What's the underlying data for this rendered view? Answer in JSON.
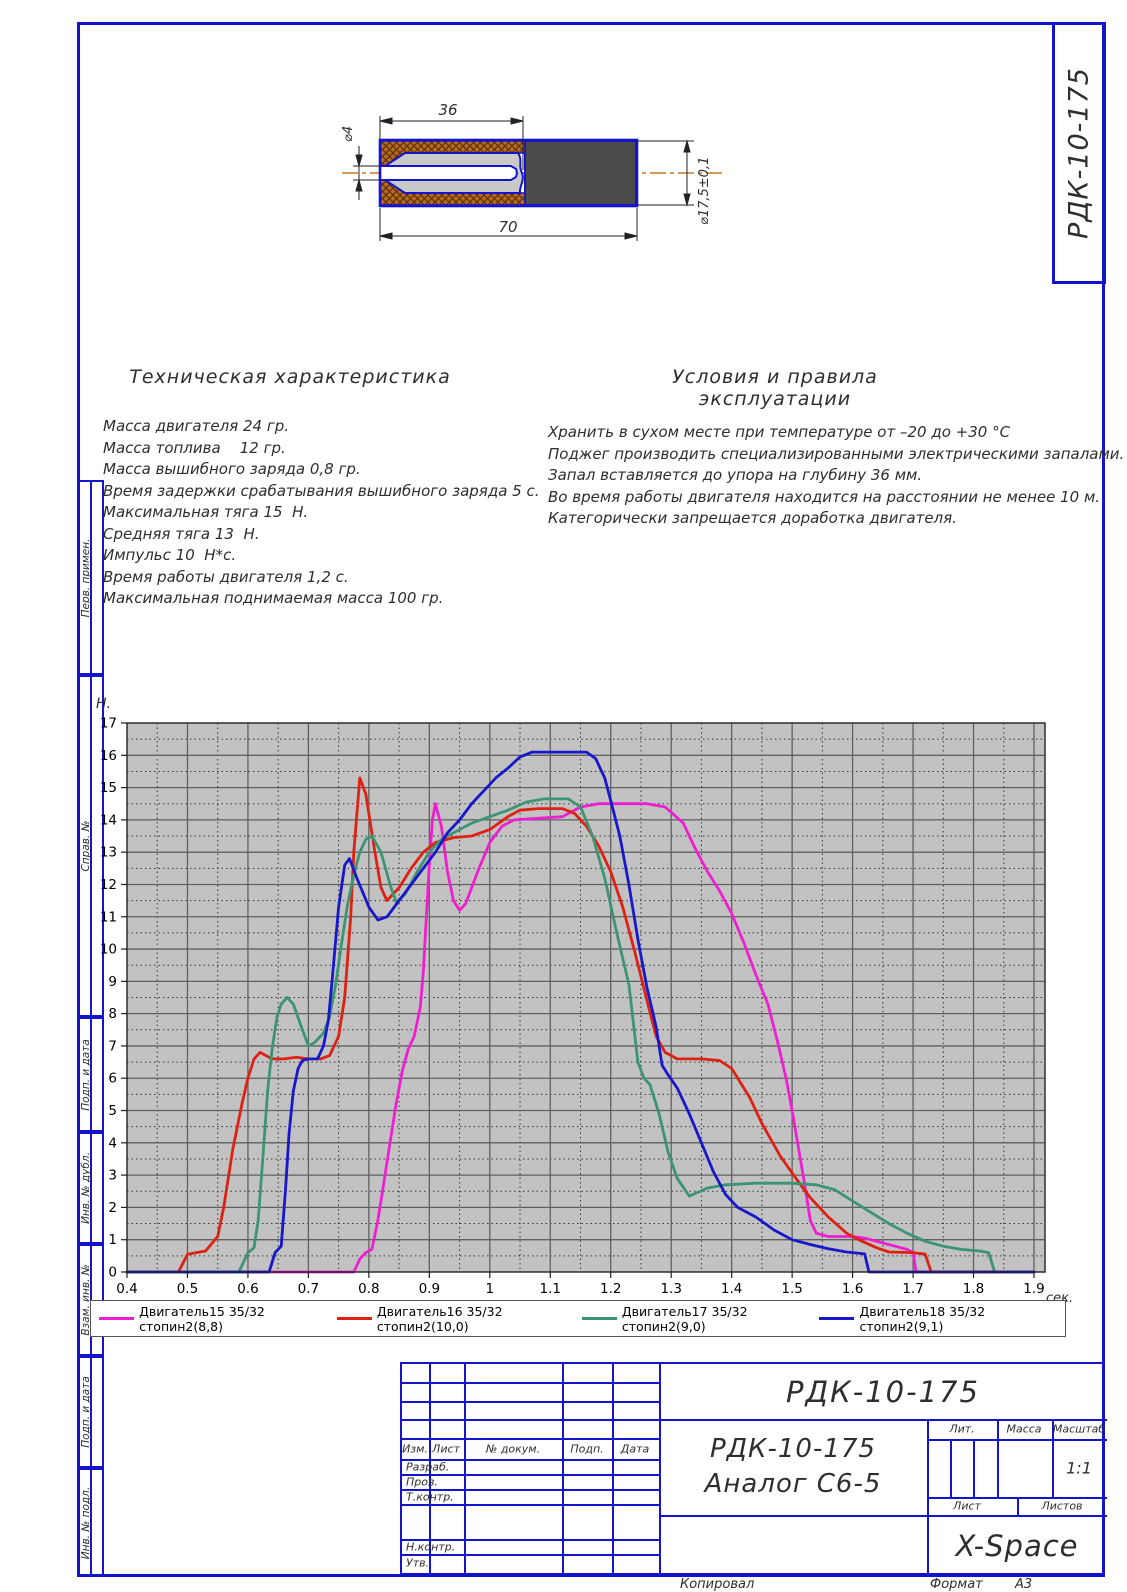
{
  "sheet": {
    "stamp_vertical": "РДК-10-175",
    "copied_label": "Копировал",
    "format_label": "Формат",
    "format_value": "А3"
  },
  "margin_labels": [
    "Перв. примен.",
    "Справ. №",
    "Подп. и дата",
    "Инв. № дубл.",
    "Взам. инв. №",
    "Подп. и дата",
    "Инв. № подл."
  ],
  "drawing": {
    "dim_channel_depth": "36",
    "dim_total_length": "70",
    "dim_channel_dia": "⌀4",
    "dim_body_dia": "⌀17,5±0,1",
    "colors": {
      "outline": "#1414cc",
      "hatch": "#b86a1e",
      "propellant": "#c9c9c9",
      "charge": "#4b4b4b",
      "centerline": "#c87820"
    }
  },
  "tech_specs": {
    "title": "Техническая характеристика",
    "lines": [
      "Масса двигателя 24 гр.",
      "Масса топлива    12 гр.",
      "Масса вышибного заряда 0,8 гр.",
      "Время задержки срабатывания вышибного заряда 5 с.",
      "Максимальная тяга 15  Н.",
      "Средняя тяга 13  Н.",
      "Импульс 10  Н*с.",
      "Время работы двигателя 1,2 с.",
      "Максимальная поднимаемая масса 100 гр."
    ]
  },
  "usage_rules": {
    "title": "Условия и правила эксплуатации",
    "lines": [
      "Хранить в сухом месте при температуре от –20 до +30 °С",
      "Поджег производить специализированными электрическими запалами.",
      "Запал вставляется до упора на глубину 36 мм.",
      "Во время работы двигателя находится на расстоянии не менее 10 м.",
      "Категорически запрещается доработка двигателя."
    ]
  },
  "chart_data": {
    "type": "line",
    "title": "",
    "xlabel": "сек.",
    "ylabel": "Н.",
    "xlim": [
      0.4,
      1.9
    ],
    "ylim": [
      0,
      17
    ],
    "x_major_step": 0.1,
    "x_minor_step": 0.05,
    "y_major_step": 1,
    "y_minor_step": 0.5,
    "grid": "major solid gray, minor dashed black, gray plot background",
    "plot_bg": "#c2c2c2",
    "major_grid_color": "#606060",
    "minor_grid_color": "#383838",
    "legend_position": "bottom",
    "series": [
      {
        "name": "Двигатель15 35/32 стопин2(8,8)",
        "color": "#ee1fd0",
        "points": [
          [
            0.4,
            0
          ],
          [
            0.775,
            0
          ],
          [
            0.785,
            0.4
          ],
          [
            0.795,
            0.6
          ],
          [
            0.805,
            0.7
          ],
          [
            0.815,
            1.6
          ],
          [
            0.825,
            2.8
          ],
          [
            0.835,
            4.0
          ],
          [
            0.845,
            5.2
          ],
          [
            0.855,
            6.2
          ],
          [
            0.865,
            6.9
          ],
          [
            0.875,
            7.3
          ],
          [
            0.885,
            8.2
          ],
          [
            0.89,
            9.3
          ],
          [
            0.9,
            12.6
          ],
          [
            0.905,
            14.0
          ],
          [
            0.91,
            14.5
          ],
          [
            0.92,
            13.8
          ],
          [
            0.93,
            12.4
          ],
          [
            0.94,
            11.5
          ],
          [
            0.95,
            11.2
          ],
          [
            0.96,
            11.4
          ],
          [
            0.98,
            12.4
          ],
          [
            1.0,
            13.3
          ],
          [
            1.02,
            13.8
          ],
          [
            1.04,
            14.0
          ],
          [
            1.08,
            14.05
          ],
          [
            1.12,
            14.1
          ],
          [
            1.15,
            14.4
          ],
          [
            1.18,
            14.5
          ],
          [
            1.22,
            14.5
          ],
          [
            1.26,
            14.5
          ],
          [
            1.29,
            14.4
          ],
          [
            1.32,
            13.9
          ],
          [
            1.34,
            13.1
          ],
          [
            1.36,
            12.4
          ],
          [
            1.38,
            11.8
          ],
          [
            1.4,
            11.1
          ],
          [
            1.42,
            10.2
          ],
          [
            1.44,
            9.2
          ],
          [
            1.46,
            8.3
          ],
          [
            1.475,
            7.2
          ],
          [
            1.49,
            6.0
          ],
          [
            1.5,
            5.0
          ],
          [
            1.51,
            3.9
          ],
          [
            1.52,
            2.8
          ],
          [
            1.53,
            1.6
          ],
          [
            1.54,
            1.2
          ],
          [
            1.56,
            1.1
          ],
          [
            1.6,
            1.1
          ],
          [
            1.62,
            1.05
          ],
          [
            1.64,
            0.95
          ],
          [
            1.67,
            0.8
          ],
          [
            1.69,
            0.7
          ],
          [
            1.7,
            0.6
          ],
          [
            1.705,
            0
          ],
          [
            1.9,
            0
          ]
        ]
      },
      {
        "name": "Двигатель16 35/32 стопин2(10,0)",
        "color": "#dd2112",
        "points": [
          [
            0.4,
            0
          ],
          [
            0.485,
            0
          ],
          [
            0.5,
            0.55
          ],
          [
            0.53,
            0.65
          ],
          [
            0.55,
            1.1
          ],
          [
            0.56,
            2.0
          ],
          [
            0.575,
            3.8
          ],
          [
            0.59,
            5.2
          ],
          [
            0.6,
            6.0
          ],
          [
            0.61,
            6.6
          ],
          [
            0.62,
            6.8
          ],
          [
            0.64,
            6.6
          ],
          [
            0.66,
            6.6
          ],
          [
            0.68,
            6.65
          ],
          [
            0.7,
            6.6
          ],
          [
            0.72,
            6.6
          ],
          [
            0.735,
            6.7
          ],
          [
            0.75,
            7.3
          ],
          [
            0.76,
            8.5
          ],
          [
            0.77,
            11.0
          ],
          [
            0.775,
            13.0
          ],
          [
            0.785,
            15.3
          ],
          [
            0.795,
            14.8
          ],
          [
            0.81,
            13.0
          ],
          [
            0.82,
            11.9
          ],
          [
            0.83,
            11.5
          ],
          [
            0.85,
            11.9
          ],
          [
            0.87,
            12.5
          ],
          [
            0.89,
            13.0
          ],
          [
            0.91,
            13.3
          ],
          [
            0.94,
            13.45
          ],
          [
            0.97,
            13.5
          ],
          [
            1.0,
            13.7
          ],
          [
            1.03,
            14.1
          ],
          [
            1.05,
            14.3
          ],
          [
            1.08,
            14.35
          ],
          [
            1.12,
            14.35
          ],
          [
            1.14,
            14.2
          ],
          [
            1.16,
            13.8
          ],
          [
            1.18,
            13.2
          ],
          [
            1.2,
            12.4
          ],
          [
            1.22,
            11.3
          ],
          [
            1.24,
            9.9
          ],
          [
            1.26,
            8.4
          ],
          [
            1.275,
            7.3
          ],
          [
            1.29,
            6.8
          ],
          [
            1.31,
            6.6
          ],
          [
            1.35,
            6.6
          ],
          [
            1.38,
            6.55
          ],
          [
            1.4,
            6.3
          ],
          [
            1.43,
            5.4
          ],
          [
            1.45,
            4.6
          ],
          [
            1.48,
            3.6
          ],
          [
            1.51,
            2.8
          ],
          [
            1.53,
            2.3
          ],
          [
            1.56,
            1.7
          ],
          [
            1.59,
            1.2
          ],
          [
            1.61,
            1.0
          ],
          [
            1.64,
            0.75
          ],
          [
            1.66,
            0.62
          ],
          [
            1.7,
            0.6
          ],
          [
            1.72,
            0.55
          ],
          [
            1.73,
            0
          ],
          [
            1.9,
            0
          ]
        ]
      },
      {
        "name": "Двигатель17 35/32 стопин2(9,0)",
        "color": "#3c9472",
        "points": [
          [
            0.4,
            0
          ],
          [
            0.585,
            0
          ],
          [
            0.6,
            0.6
          ],
          [
            0.61,
            0.75
          ],
          [
            0.617,
            1.6
          ],
          [
            0.625,
            3.6
          ],
          [
            0.633,
            5.7
          ],
          [
            0.64,
            6.9
          ],
          [
            0.648,
            7.9
          ],
          [
            0.655,
            8.3
          ],
          [
            0.665,
            8.5
          ],
          [
            0.675,
            8.3
          ],
          [
            0.69,
            7.5
          ],
          [
            0.7,
            7.0
          ],
          [
            0.71,
            7.1
          ],
          [
            0.725,
            7.4
          ],
          [
            0.735,
            7.9
          ],
          [
            0.745,
            8.9
          ],
          [
            0.755,
            10.2
          ],
          [
            0.765,
            11.4
          ],
          [
            0.775,
            12.3
          ],
          [
            0.785,
            13.0
          ],
          [
            0.795,
            13.4
          ],
          [
            0.805,
            13.5
          ],
          [
            0.82,
            13.0
          ],
          [
            0.835,
            12.0
          ],
          [
            0.845,
            11.45
          ],
          [
            0.86,
            11.7
          ],
          [
            0.88,
            12.4
          ],
          [
            0.9,
            13.0
          ],
          [
            0.92,
            13.4
          ],
          [
            0.94,
            13.6
          ],
          [
            0.97,
            13.9
          ],
          [
            1.0,
            14.1
          ],
          [
            1.03,
            14.3
          ],
          [
            1.06,
            14.55
          ],
          [
            1.09,
            14.65
          ],
          [
            1.13,
            14.65
          ],
          [
            1.15,
            14.4
          ],
          [
            1.17,
            13.5
          ],
          [
            1.19,
            12.2
          ],
          [
            1.21,
            10.5
          ],
          [
            1.23,
            8.9
          ],
          [
            1.245,
            6.5
          ],
          [
            1.255,
            6.0
          ],
          [
            1.265,
            5.8
          ],
          [
            1.28,
            4.9
          ],
          [
            1.295,
            3.7
          ],
          [
            1.31,
            2.9
          ],
          [
            1.33,
            2.35
          ],
          [
            1.36,
            2.6
          ],
          [
            1.39,
            2.7
          ],
          [
            1.44,
            2.75
          ],
          [
            1.5,
            2.75
          ],
          [
            1.54,
            2.7
          ],
          [
            1.57,
            2.55
          ],
          [
            1.6,
            2.2
          ],
          [
            1.63,
            1.85
          ],
          [
            1.66,
            1.5
          ],
          [
            1.69,
            1.2
          ],
          [
            1.72,
            0.95
          ],
          [
            1.75,
            0.8
          ],
          [
            1.78,
            0.7
          ],
          [
            1.81,
            0.65
          ],
          [
            1.825,
            0.6
          ],
          [
            1.835,
            0
          ],
          [
            1.9,
            0
          ]
        ]
      },
      {
        "name": "Двигатель18 35/32 стопин2(9,1)",
        "color": "#1717cc",
        "points": [
          [
            0.4,
            0
          ],
          [
            0.635,
            0
          ],
          [
            0.645,
            0.6
          ],
          [
            0.655,
            0.8
          ],
          [
            0.662,
            2.5
          ],
          [
            0.668,
            4.3
          ],
          [
            0.675,
            5.6
          ],
          [
            0.683,
            6.3
          ],
          [
            0.69,
            6.55
          ],
          [
            0.7,
            6.6
          ],
          [
            0.715,
            6.6
          ],
          [
            0.725,
            7.0
          ],
          [
            0.733,
            7.8
          ],
          [
            0.74,
            9.2
          ],
          [
            0.75,
            11.3
          ],
          [
            0.76,
            12.6
          ],
          [
            0.768,
            12.8
          ],
          [
            0.78,
            12.2
          ],
          [
            0.8,
            11.3
          ],
          [
            0.815,
            10.9
          ],
          [
            0.83,
            11.0
          ],
          [
            0.85,
            11.5
          ],
          [
            0.87,
            12.0
          ],
          [
            0.89,
            12.5
          ],
          [
            0.91,
            13.0
          ],
          [
            0.93,
            13.6
          ],
          [
            0.95,
            14.0
          ],
          [
            0.97,
            14.5
          ],
          [
            0.99,
            14.9
          ],
          [
            1.01,
            15.3
          ],
          [
            1.03,
            15.6
          ],
          [
            1.05,
            15.95
          ],
          [
            1.07,
            16.1
          ],
          [
            1.1,
            16.1
          ],
          [
            1.13,
            16.1
          ],
          [
            1.16,
            16.1
          ],
          [
            1.175,
            15.9
          ],
          [
            1.19,
            15.3
          ],
          [
            1.2,
            14.6
          ],
          [
            1.215,
            13.5
          ],
          [
            1.23,
            12.0
          ],
          [
            1.245,
            10.3
          ],
          [
            1.26,
            8.8
          ],
          [
            1.275,
            7.6
          ],
          [
            1.285,
            6.4
          ],
          [
            1.295,
            6.1
          ],
          [
            1.31,
            5.7
          ],
          [
            1.33,
            4.9
          ],
          [
            1.35,
            4.0
          ],
          [
            1.37,
            3.1
          ],
          [
            1.39,
            2.4
          ],
          [
            1.41,
            2.0
          ],
          [
            1.44,
            1.7
          ],
          [
            1.47,
            1.3
          ],
          [
            1.5,
            1.0
          ],
          [
            1.53,
            0.85
          ],
          [
            1.56,
            0.72
          ],
          [
            1.59,
            0.62
          ],
          [
            1.62,
            0.56
          ],
          [
            1.627,
            0
          ],
          [
            1.9,
            0
          ]
        ]
      }
    ]
  },
  "title_block": {
    "doc_code_top": "РДК-10-175",
    "doc_title_line1": "РДК-10-175",
    "doc_title_line2": "Аналог С6-5",
    "company": "X-Space",
    "scale_value": "1:1",
    "labels": {
      "izm": "Изм.",
      "list": "Лист",
      "n_dokum": "№ докум.",
      "podp": "Подп.",
      "data": "Дата",
      "razrab": "Разраб.",
      "prov": "Пров.",
      "t_kontr": "Т.контр.",
      "n_kontr": "Н.контр.",
      "utv": "Утв.",
      "lit": "Лит.",
      "massa": "Масса",
      "masshtab": "Масштаб",
      "list2": "Лист",
      "listov": "Листов"
    }
  }
}
